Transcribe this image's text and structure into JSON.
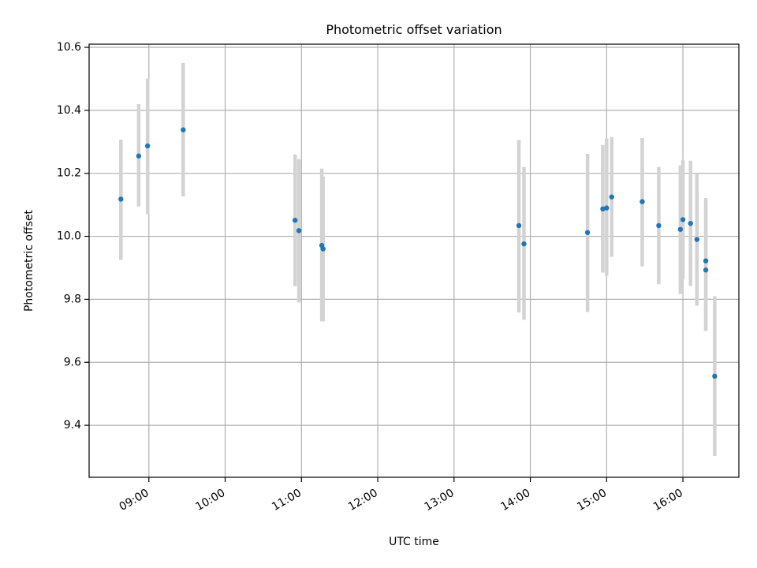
{
  "chart_data": {
    "type": "scatter",
    "title": "Photometric offset variation",
    "xlabel": "UTC time",
    "ylabel": "Photometric offset",
    "grid": true,
    "xlim": [
      "08:13",
      "16:44"
    ],
    "ylim": [
      9.235,
      10.61
    ],
    "x_ticks": [
      "09:00",
      "10:00",
      "11:00",
      "12:00",
      "13:00",
      "14:00",
      "15:00",
      "16:00"
    ],
    "y_ticks": [
      "9.4",
      "9.6",
      "9.8",
      "10.0",
      "10.2",
      "10.4",
      "10.6"
    ],
    "colors": {
      "point": "#1f77b4",
      "errorbar": "#d3d3d3",
      "grid": "#b0b0b0"
    },
    "series": [
      {
        "points": [
          {
            "x": "08:38",
            "y": 10.118,
            "lo": 9.925,
            "hi": 10.307
          },
          {
            "x": "08:52",
            "y": 10.255,
            "lo": 10.095,
            "hi": 10.42
          },
          {
            "x": "08:59",
            "y": 10.287,
            "lo": 10.07,
            "hi": 10.5
          },
          {
            "x": "09:27",
            "y": 10.338,
            "lo": 10.127,
            "hi": 10.55
          },
          {
            "x": "10:55",
            "y": 10.051,
            "lo": 9.842,
            "hi": 10.26
          },
          {
            "x": "10:58",
            "y": 10.018,
            "lo": 9.79,
            "hi": 10.245
          },
          {
            "x": "11:16",
            "y": 9.971,
            "lo": 9.73,
            "hi": 10.215
          },
          {
            "x": "11:17",
            "y": 9.96,
            "lo": 9.73,
            "hi": 10.19
          },
          {
            "x": "13:51",
            "y": 10.034,
            "lo": 9.758,
            "hi": 10.306
          },
          {
            "x": "13:55",
            "y": 9.976,
            "lo": 9.735,
            "hi": 10.22
          },
          {
            "x": "14:45",
            "y": 10.012,
            "lo": 9.76,
            "hi": 10.262
          },
          {
            "x": "14:57",
            "y": 10.087,
            "lo": 9.885,
            "hi": 10.29
          },
          {
            "x": "15:00",
            "y": 10.09,
            "lo": 9.875,
            "hi": 10.31
          },
          {
            "x": "15:04",
            "y": 10.125,
            "lo": 9.935,
            "hi": 10.315
          },
          {
            "x": "15:28",
            "y": 10.11,
            "lo": 9.905,
            "hi": 10.312
          },
          {
            "x": "15:41",
            "y": 10.034,
            "lo": 9.848,
            "hi": 10.22
          },
          {
            "x": "15:58",
            "y": 10.022,
            "lo": 9.817,
            "hi": 10.225
          },
          {
            "x": "16:00",
            "y": 10.053,
            "lo": 9.865,
            "hi": 10.242
          },
          {
            "x": "16:06",
            "y": 10.041,
            "lo": 9.842,
            "hi": 10.24
          },
          {
            "x": "16:11",
            "y": 9.99,
            "lo": 9.78,
            "hi": 10.2
          },
          {
            "x": "16:18",
            "y": 9.922,
            "lo": 9.7,
            "hi": 10.122
          },
          {
            "x": "16:18",
            "y": 9.893,
            "lo": 9.7,
            "hi": 10.085
          },
          {
            "x": "16:25",
            "y": 9.556,
            "lo": 9.303,
            "hi": 9.81
          }
        ]
      }
    ]
  }
}
